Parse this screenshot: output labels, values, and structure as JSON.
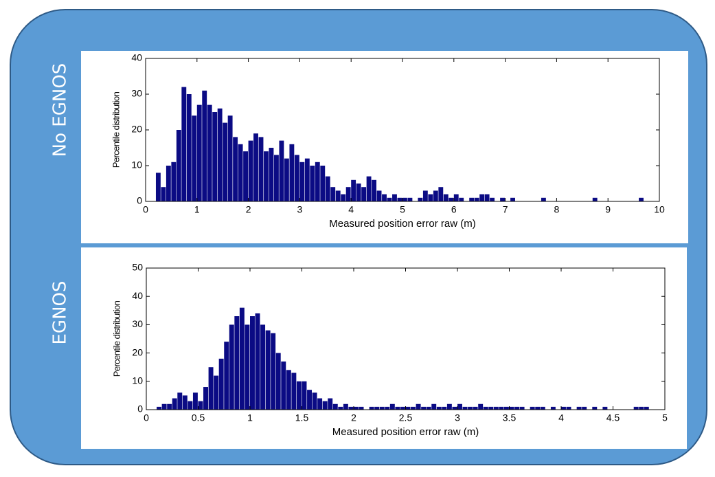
{
  "chart_data": [
    {
      "type": "histogram",
      "panel_label": "No EGNOS",
      "xlabel": "Measured position error raw (m)",
      "ylabel": "Percentile distribution",
      "color": "#0b0b84",
      "xlim": [
        0,
        10
      ],
      "ylim": [
        0,
        40
      ],
      "xticks": [
        0,
        1,
        2,
        3,
        4,
        5,
        6,
        7,
        8,
        9,
        10
      ],
      "yticks": [
        0,
        10,
        20,
        30,
        40
      ],
      "grid": false,
      "bins": [
        0,
        0.1,
        0.2,
        0.3,
        0.4,
        0.5,
        0.6,
        0.7,
        0.8,
        0.9,
        1,
        1.1,
        1.2,
        1.3,
        1.4,
        1.5,
        1.6,
        1.7,
        1.8,
        1.9,
        2,
        2.1,
        2.2,
        2.3,
        2.4,
        2.5,
        2.6,
        2.7,
        2.8,
        2.9,
        3,
        3.1,
        3.2,
        3.3,
        3.4,
        3.5,
        3.6,
        3.7,
        3.8,
        3.9,
        4,
        4.1,
        4.2,
        4.3,
        4.4,
        4.5,
        4.6,
        4.7,
        4.8,
        4.9,
        5,
        5.1,
        5.2,
        5.3,
        5.4,
        5.5,
        5.6,
        5.7,
        5.8,
        5.9,
        6,
        6.1,
        6.2,
        6.3,
        6.4,
        6.5,
        6.6,
        6.7,
        6.8,
        6.9,
        7,
        7.1,
        7.2,
        7.3,
        7.4,
        7.5,
        7.6,
        7.7,
        7.8,
        7.9,
        8,
        8.1,
        8.2,
        8.3,
        8.4,
        8.5,
        8.6,
        8.7,
        8.8,
        8.9,
        9,
        9.1,
        9.2,
        9.3,
        9.4,
        9.5,
        9.6,
        9.7,
        9.8,
        9.9,
        10
      ],
      "values": [
        0,
        0,
        8,
        4,
        10,
        11,
        20,
        32,
        30,
        24,
        27,
        31,
        27,
        25,
        26,
        22,
        24,
        18,
        16,
        14,
        17,
        19,
        18,
        14,
        15,
        13,
        17,
        12,
        16,
        13,
        11,
        12,
        10,
        11,
        10,
        7,
        4,
        3,
        2,
        4,
        6,
        5,
        4,
        7,
        6,
        3,
        2,
        1,
        2,
        1,
        1,
        1,
        0,
        1,
        3,
        2,
        3,
        4,
        2,
        1,
        2,
        1,
        0,
        1,
        1,
        2,
        2,
        1,
        0,
        1,
        0,
        1,
        0,
        0,
        0,
        0,
        0,
        1,
        0,
        0,
        0,
        0,
        0,
        0,
        0,
        0,
        0,
        1,
        0,
        0,
        0,
        0,
        0,
        0,
        0,
        0,
        1,
        0,
        0,
        0
      ]
    },
    {
      "type": "histogram",
      "panel_label": "EGNOS",
      "xlabel": "Measured position error raw (m)",
      "ylabel": "Percentile distribution",
      "color": "#0b0b84",
      "xlim": [
        0,
        5
      ],
      "ylim": [
        0,
        50
      ],
      "xticks": [
        0,
        0.5,
        1,
        1.5,
        2,
        2.5,
        3,
        3.5,
        4,
        4.5,
        5
      ],
      "yticks": [
        0,
        10,
        20,
        30,
        40,
        50
      ],
      "grid": false,
      "bins": [
        0,
        0.05,
        0.1,
        0.15,
        0.2,
        0.25,
        0.3,
        0.35,
        0.4,
        0.45,
        0.5,
        0.55,
        0.6,
        0.65,
        0.7,
        0.75,
        0.8,
        0.85,
        0.9,
        0.95,
        1,
        1.05,
        1.1,
        1.15,
        1.2,
        1.25,
        1.3,
        1.35,
        1.4,
        1.45,
        1.5,
        1.55,
        1.6,
        1.65,
        1.7,
        1.75,
        1.8,
        1.85,
        1.9,
        1.95,
        2,
        2.05,
        2.1,
        2.15,
        2.2,
        2.25,
        2.3,
        2.35,
        2.4,
        2.45,
        2.5,
        2.55,
        2.6,
        2.65,
        2.7,
        2.75,
        2.8,
        2.85,
        2.9,
        2.95,
        3,
        3.05,
        3.1,
        3.15,
        3.2,
        3.25,
        3.3,
        3.35,
        3.4,
        3.45,
        3.5,
        3.55,
        3.6,
        3.65,
        3.7,
        3.75,
        3.8,
        3.85,
        3.9,
        3.95,
        4,
        4.05,
        4.1,
        4.15,
        4.2,
        4.25,
        4.3,
        4.35,
        4.4,
        4.45,
        4.5,
        4.55,
        4.6,
        4.65,
        4.7,
        4.75,
        4.8,
        4.85,
        4.9,
        4.95,
        5
      ],
      "values": [
        0,
        0,
        1,
        2,
        2,
        4,
        6,
        5,
        3,
        6,
        3,
        8,
        15,
        12,
        18,
        24,
        30,
        33,
        36,
        30,
        33,
        34,
        30,
        28,
        27,
        20,
        17,
        14,
        13,
        10,
        10,
        7,
        6,
        4,
        3,
        4,
        2,
        1,
        2,
        1,
        1,
        1,
        0,
        1,
        1,
        1,
        1,
        2,
        1,
        1,
        1,
        1,
        2,
        1,
        1,
        2,
        1,
        1,
        2,
        1,
        2,
        1,
        1,
        1,
        2,
        1,
        1,
        1,
        1,
        1,
        1,
        1,
        1,
        0,
        1,
        1,
        1,
        0,
        1,
        0,
        1,
        1,
        0,
        1,
        1,
        0,
        1,
        0,
        1,
        0,
        0,
        0,
        0,
        0,
        1,
        1,
        1,
        0,
        0,
        0
      ]
    }
  ]
}
